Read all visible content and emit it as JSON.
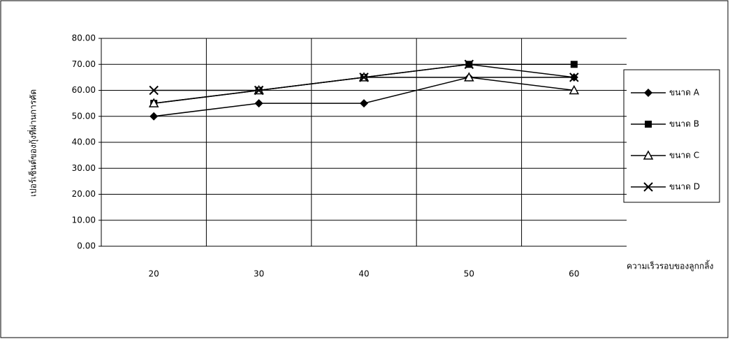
{
  "chart_data": {
    "type": "line",
    "y_label": "เปอร์เซ็นต์ของกุ้งที่ผ่านการคัด",
    "x_label": "ความเร็วรอบของลูกกลิ้ง",
    "categories": [
      "20",
      "30",
      "40",
      "50",
      "60"
    ],
    "series": [
      {
        "name": "ขนาด A",
        "color": "#000000",
        "marker": "diamond",
        "values": [
          50,
          55,
          55,
          65,
          65
        ]
      },
      {
        "name": "ขนาด B",
        "color": "#000000",
        "marker": "square",
        "values": [
          55,
          60,
          65,
          70,
          70
        ]
      },
      {
        "name": "ขนาด C",
        "color": "#000000",
        "marker": "triangle",
        "values": [
          55,
          60,
          65,
          65,
          60
        ]
      },
      {
        "name": "ขนาด D",
        "color": "#000000",
        "marker": "x",
        "values": [
          60,
          60,
          65,
          70,
          65
        ]
      }
    ],
    "ylim": [
      0,
      80
    ],
    "yticks": [
      {
        "value": 0,
        "label": "0.00"
      },
      {
        "value": 10,
        "label": "10.00"
      },
      {
        "value": 20,
        "label": "20.00"
      },
      {
        "value": 30,
        "label": "30.00"
      },
      {
        "value": 40,
        "label": "40.00"
      },
      {
        "value": 50,
        "label": "50.00"
      },
      {
        "value": 60,
        "label": "60.00"
      },
      {
        "value": 70,
        "label": "70.00"
      },
      {
        "value": 80,
        "label": "80.00"
      }
    ],
    "grid": true,
    "legend": "right"
  }
}
